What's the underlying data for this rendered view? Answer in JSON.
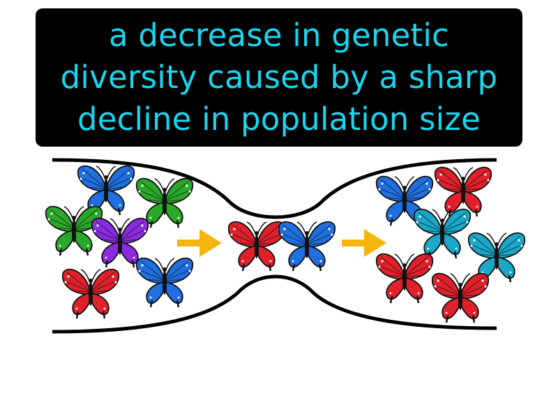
{
  "definition": {
    "lines": [
      "a decrease in genetic",
      "diversity caused by a sharp",
      "decline in population size"
    ],
    "text_color": "#19d6f0",
    "box_color": "#000000"
  },
  "diagram": {
    "outline_color": "#000000",
    "arrow_color": "#f5b50f",
    "arrows": [
      "arrow-right-icon",
      "arrow-right-icon"
    ],
    "populations": {
      "original": [
        "blue",
        "green",
        "green",
        "purple",
        "red",
        "blue"
      ],
      "bottleneck": [
        "red",
        "blue"
      ],
      "new": [
        "blue",
        "red",
        "teal",
        "teal",
        "red",
        "red"
      ]
    },
    "butterfly_colors": {
      "blue": "#1f6fe0",
      "green": "#2aa82a",
      "purple": "#8a2be2",
      "red": "#e0202a",
      "teal": "#19a8c8"
    }
  }
}
